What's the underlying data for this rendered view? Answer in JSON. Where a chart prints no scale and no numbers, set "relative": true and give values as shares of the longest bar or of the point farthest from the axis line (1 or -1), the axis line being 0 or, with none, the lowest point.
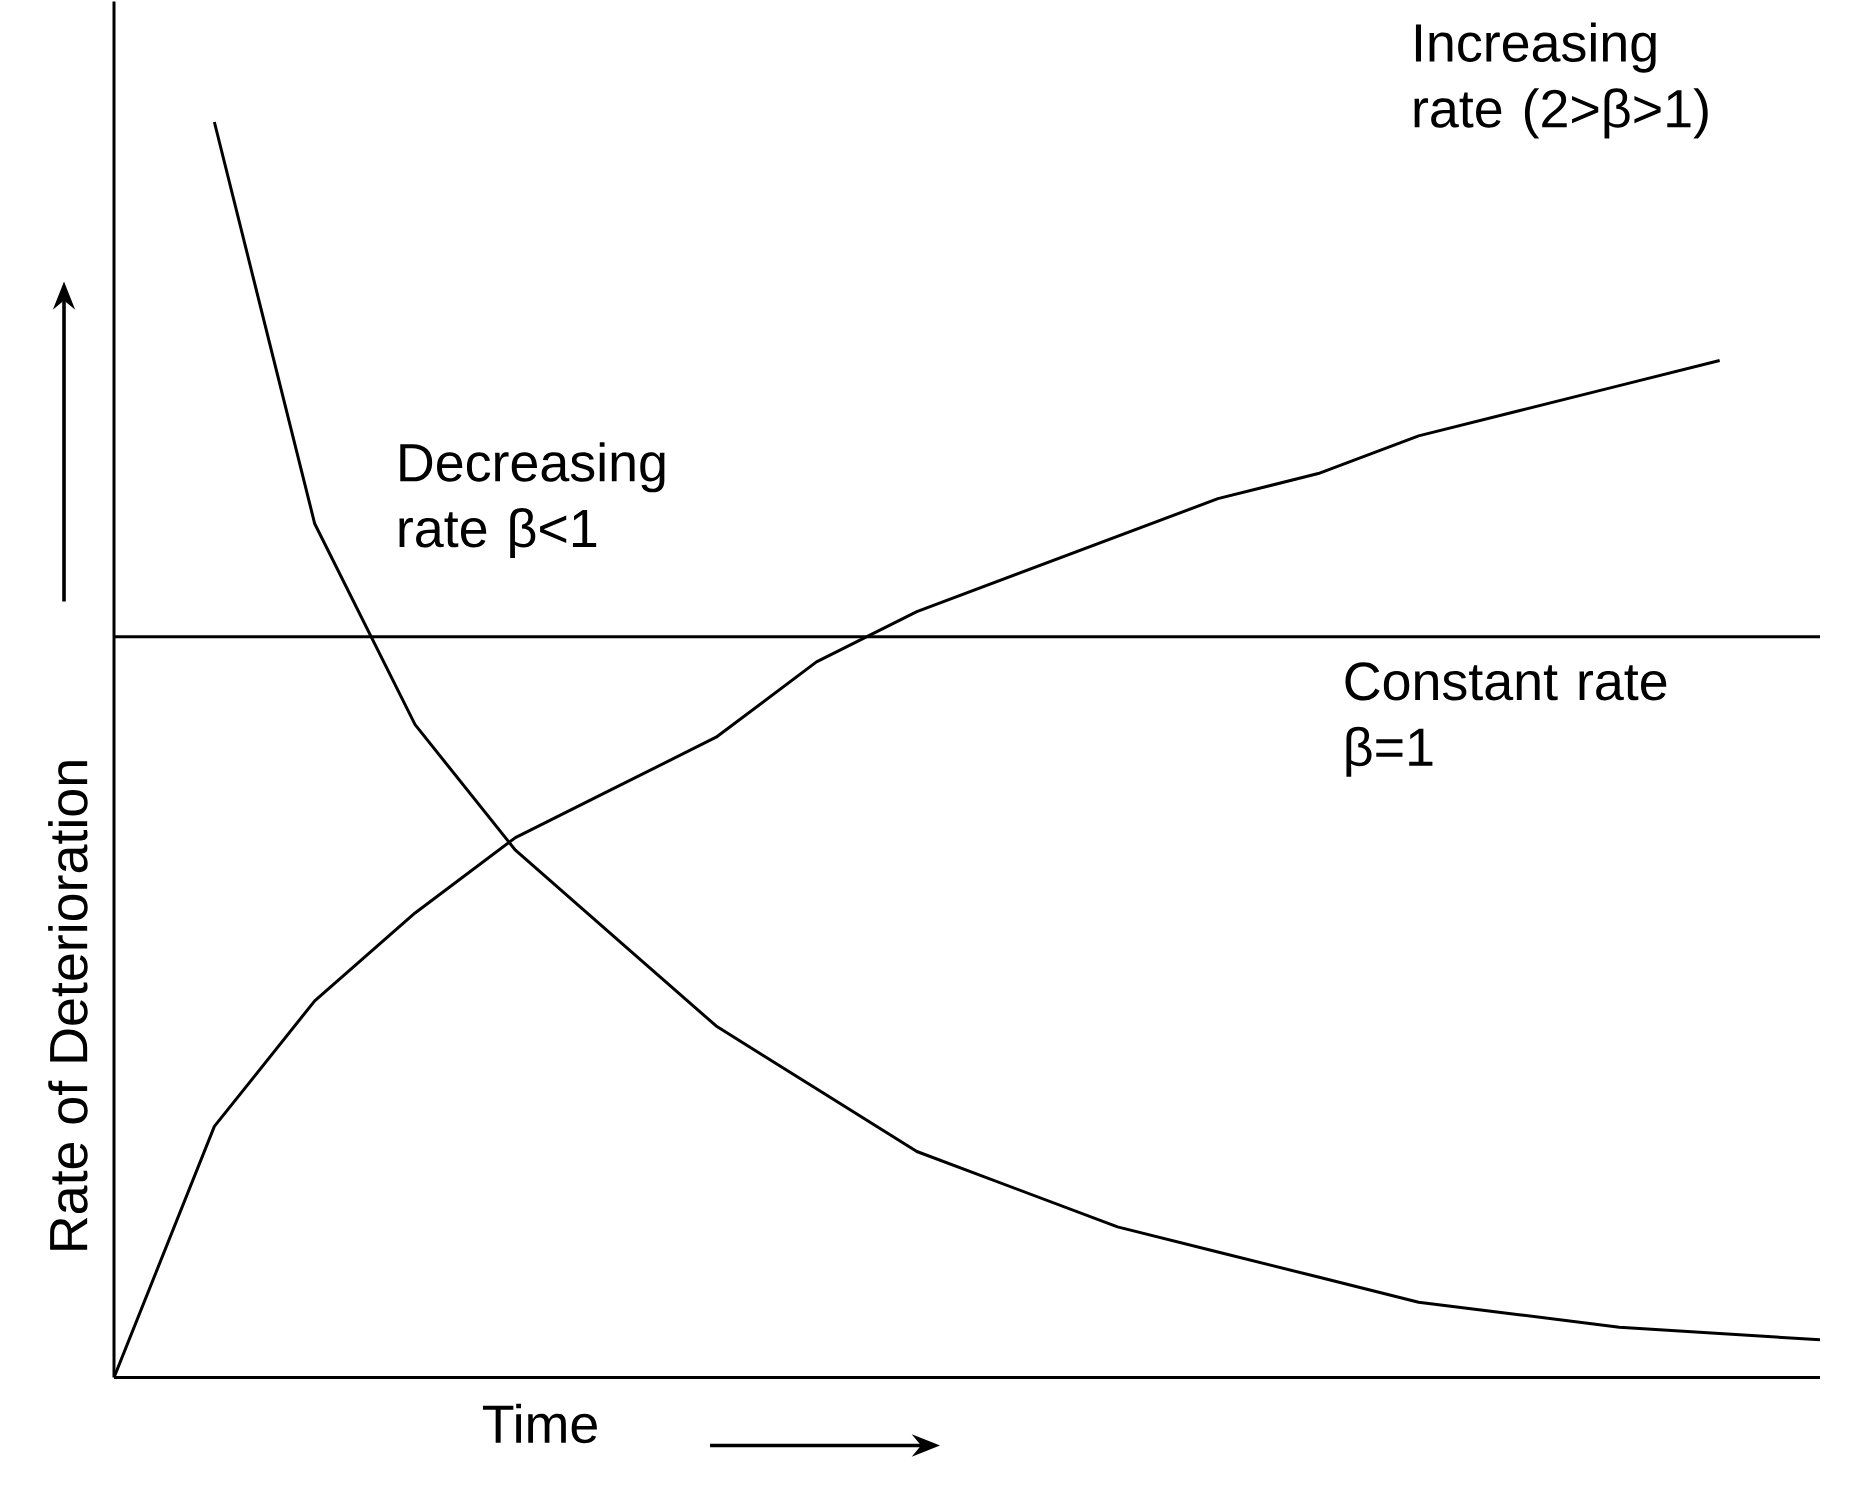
{
  "chart_data": {
    "type": "line",
    "relative": true,
    "xlabel": "Time",
    "ylabel": "Rate of Deterioration",
    "categories": [
      null,
      null,
      null,
      null,
      null,
      null,
      null,
      null,
      null,
      null,
      null,
      null,
      null,
      null,
      null,
      null,
      null,
      null
    ],
    "series": [
      {
        "color": "#000000",
        "values": [
          null,
          1,
          0.68,
          0.52,
          0.42,
          0.35,
          0.28,
          0.23,
          0.18,
          0.15,
          0.12,
          0.1,
          0.08,
          0.06,
          0.05,
          0.04,
          0.035,
          0.03
        ]
      },
      {
        "color": "#000000",
        "values": [
          0,
          0.2,
          0.3,
          0.37,
          0.43,
          0.47,
          0.51,
          0.57,
          0.61,
          0.64,
          0.67,
          0.7,
          0.72,
          0.75,
          0.77,
          0.79,
          0.81,
          null
        ]
      },
      {
        "color": "#000000",
        "values": [
          0.59,
          0.59,
          0.59,
          0.59,
          0.59,
          0.59,
          0.59,
          0.59,
          0.59,
          0.59,
          0.59,
          0.59,
          0.59,
          0.59,
          0.59,
          0.59,
          0.59,
          0.59
        ]
      }
    ],
    "annotations": [
      "Increasing rate (2>β>1)",
      "Decreasing rate β<1",
      "Constant rate β=1"
    ]
  }
}
